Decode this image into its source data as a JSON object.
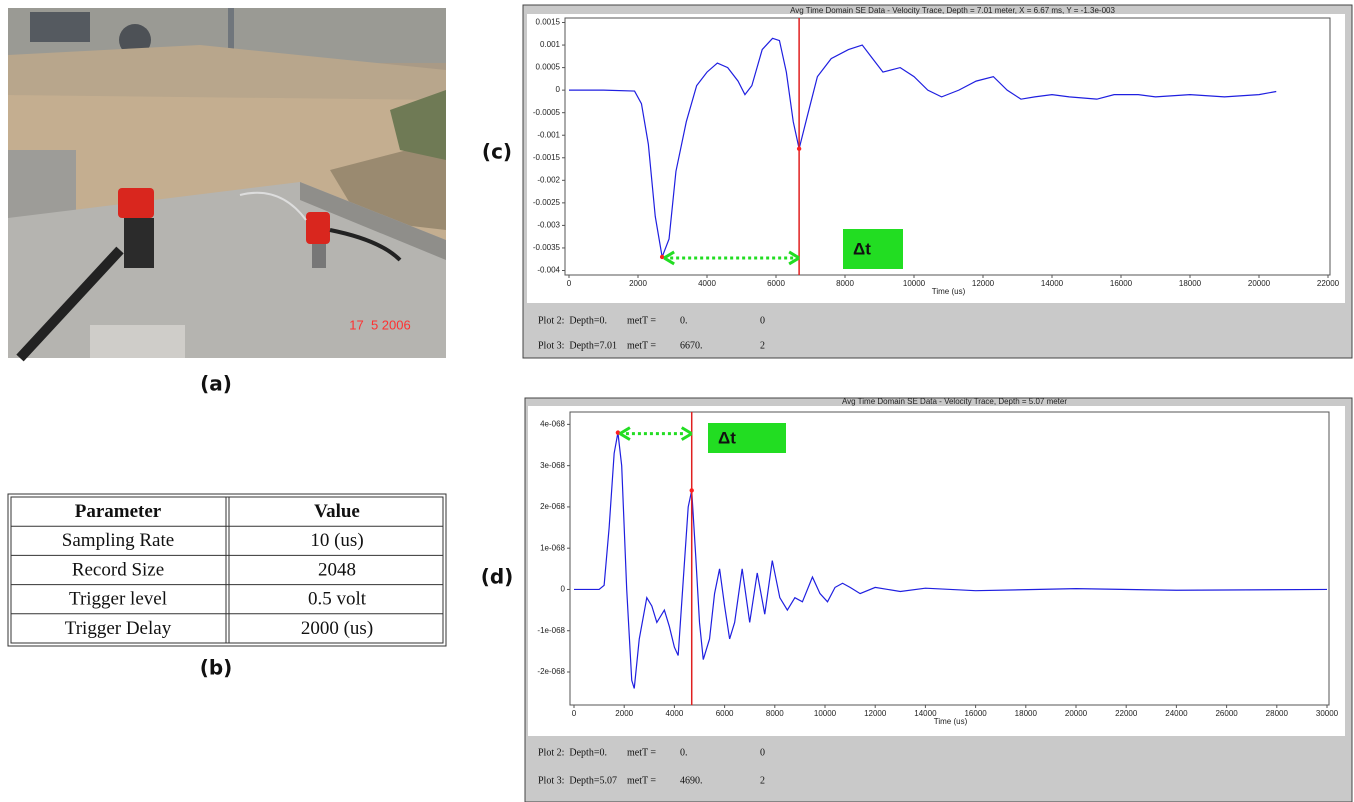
{
  "panel_labels": {
    "a": "(a)",
    "b": "(b)",
    "c": "(c)",
    "d": "(d)"
  },
  "photo": {
    "date_stamp": "17  5 2006"
  },
  "table": {
    "header": [
      "Parameter",
      "Value"
    ],
    "rows": [
      [
        "Sampling Rate",
        "10 (us)"
      ],
      [
        "Record Size",
        "2048"
      ],
      [
        "Trigger level",
        "0.5 volt"
      ],
      [
        "Trigger Delay",
        "2000 (us)"
      ]
    ]
  },
  "chart_data": [
    {
      "type": "line",
      "title": "Avg Time Domain SE Data - Velocity Trace, Depth = 7.01 meter, X = 6.67 ms, Y = -1.3e-003",
      "x_label": "Time (us)",
      "x": [
        0,
        1000,
        1900,
        2100,
        2300,
        2500,
        2700,
        2900,
        3100,
        3400,
        3700,
        4000,
        4300,
        4600,
        4900,
        5100,
        5300,
        5600,
        5900,
        6100,
        6300,
        6500,
        6670,
        6900,
        7200,
        7600,
        8100,
        8500,
        8800,
        9100,
        9600,
        10000,
        10400,
        10800,
        11300,
        11800,
        12300,
        12700,
        13100,
        13500,
        14000,
        14500,
        15300,
        15800,
        16500,
        17000,
        18000,
        19000,
        20000,
        20500
      ],
      "values": [
        0,
        0,
        -2e-05,
        -0.0003,
        -0.0012,
        -0.0028,
        -0.0037,
        -0.0033,
        -0.0018,
        -0.0007,
        0.0001,
        0.0004,
        0.0006,
        0.0005,
        0.0002,
        -0.0001,
        0.0001,
        0.0009,
        0.00115,
        0.0011,
        0.0004,
        -0.0007,
        -0.0013,
        -0.0006,
        0.0003,
        0.0007,
        0.0009,
        0.001,
        0.0007,
        0.0004,
        0.0005,
        0.0003,
        0,
        -0.00015,
        0,
        0.0002,
        0.0003,
        0,
        -0.0002,
        -0.00015,
        -0.0001,
        -0.00015,
        -0.0002,
        -0.0001,
        -0.0001,
        -0.00015,
        -0.0001,
        -0.00015,
        -0.0001,
        -3e-05
      ],
      "color": "#1f1fe0",
      "xlim": [
        0,
        22000
      ],
      "xticks": [
        0,
        2000,
        4000,
        6000,
        8000,
        10000,
        12000,
        14000,
        16000,
        18000,
        20000,
        22000
      ],
      "ylim": [
        -0.0041,
        0.0016
      ],
      "yticks": [
        0.0015,
        0.001,
        0.0005,
        0,
        -0.0005,
        -0.001,
        -0.0015,
        -0.002,
        -0.0025,
        -0.003,
        -0.0035,
        -0.004
      ],
      "cursor_x": 6670,
      "markers": [
        {
          "x": 2700,
          "y": -0.0037
        },
        {
          "x": 6670,
          "y": -0.0013
        }
      ],
      "annotation": "Δt",
      "readouts": [
        [
          "Plot 2:  Depth=0.",
          "metT =",
          "0.",
          "0"
        ],
        [
          "Plot 3:  Depth=7.01",
          "metT =",
          "6670.",
          "2"
        ]
      ]
    },
    {
      "type": "line",
      "title": "Avg Time Domain SE Data - Velocity Trace, Depth = 5.07 meter",
      "x_label": "Time (us)",
      "x": [
        0,
        1000,
        1200,
        1400,
        1600,
        1750,
        1900,
        2100,
        2300,
        2400,
        2600,
        2900,
        3100,
        3300,
        3600,
        3800,
        4000,
        4150,
        4350,
        4550,
        4690,
        4850,
        5000,
        5150,
        5400,
        5600,
        5800,
        6000,
        6200,
        6400,
        6700,
        7000,
        7300,
        7600,
        7900,
        8200,
        8500,
        8800,
        9100,
        9500,
        9800,
        10100,
        10400,
        10700,
        11000,
        11400,
        12000,
        13000,
        14000,
        16000,
        20000,
        24000,
        30000
      ],
      "values": [
        0,
        0,
        1e-69,
        1.5e-68,
        3.3e-68,
        3.8e-68,
        3e-68,
        0,
        -2.2e-68,
        -2.4e-68,
        -1.2e-68,
        -2e-69,
        -4e-69,
        -8e-69,
        -5e-69,
        -9e-69,
        -1.4e-68,
        -1.6e-68,
        2e-69,
        2e-68,
        2.4e-68,
        8e-69,
        -8e-69,
        -1.7e-68,
        -1.2e-68,
        -1e-69,
        5e-69,
        -4e-69,
        -1.2e-68,
        -8e-69,
        5e-69,
        -8e-69,
        4e-69,
        -6e-69,
        7e-69,
        -2e-69,
        -5e-69,
        -2e-69,
        -3e-69,
        3e-69,
        -1e-69,
        -3e-69,
        5e-70,
        1.5e-69,
        5e-70,
        -1e-69,
        5e-70,
        -5e-70,
        3e-70,
        -3e-70,
        2e-70,
        -2e-70,
        0
      ],
      "color": "#1f1fe0",
      "xlim": [
        0,
        30000
      ],
      "xticks": [
        0,
        2000,
        4000,
        6000,
        8000,
        10000,
        12000,
        14000,
        16000,
        18000,
        20000,
        22000,
        24000,
        26000,
        28000,
        30000
      ],
      "ylim": [
        -2.8e-68,
        4.3e-68
      ],
      "yticks": [
        {
          "value": 4e-68,
          "label": "4e-068"
        },
        {
          "value": 3e-68,
          "label": "3e-068"
        },
        {
          "value": 2e-68,
          "label": "2e-068"
        },
        {
          "value": 1e-68,
          "label": "1e-068"
        },
        0,
        {
          "value": -1e-68,
          "label": "-1e-068"
        },
        {
          "value": -2e-68,
          "label": "-2e-068"
        }
      ],
      "cursor_x": 4690,
      "markers": [
        {
          "x": 1750,
          "y": 3.8e-68
        },
        {
          "x": 4690,
          "y": 2.4e-68
        }
      ],
      "annotation": "Δt",
      "readouts": [
        [
          "Plot 2:  Depth=0.",
          "metT =",
          "0.",
          "0"
        ],
        [
          "Plot 3:  Depth=5.07",
          "metT =",
          "4690.",
          "2"
        ]
      ]
    }
  ]
}
